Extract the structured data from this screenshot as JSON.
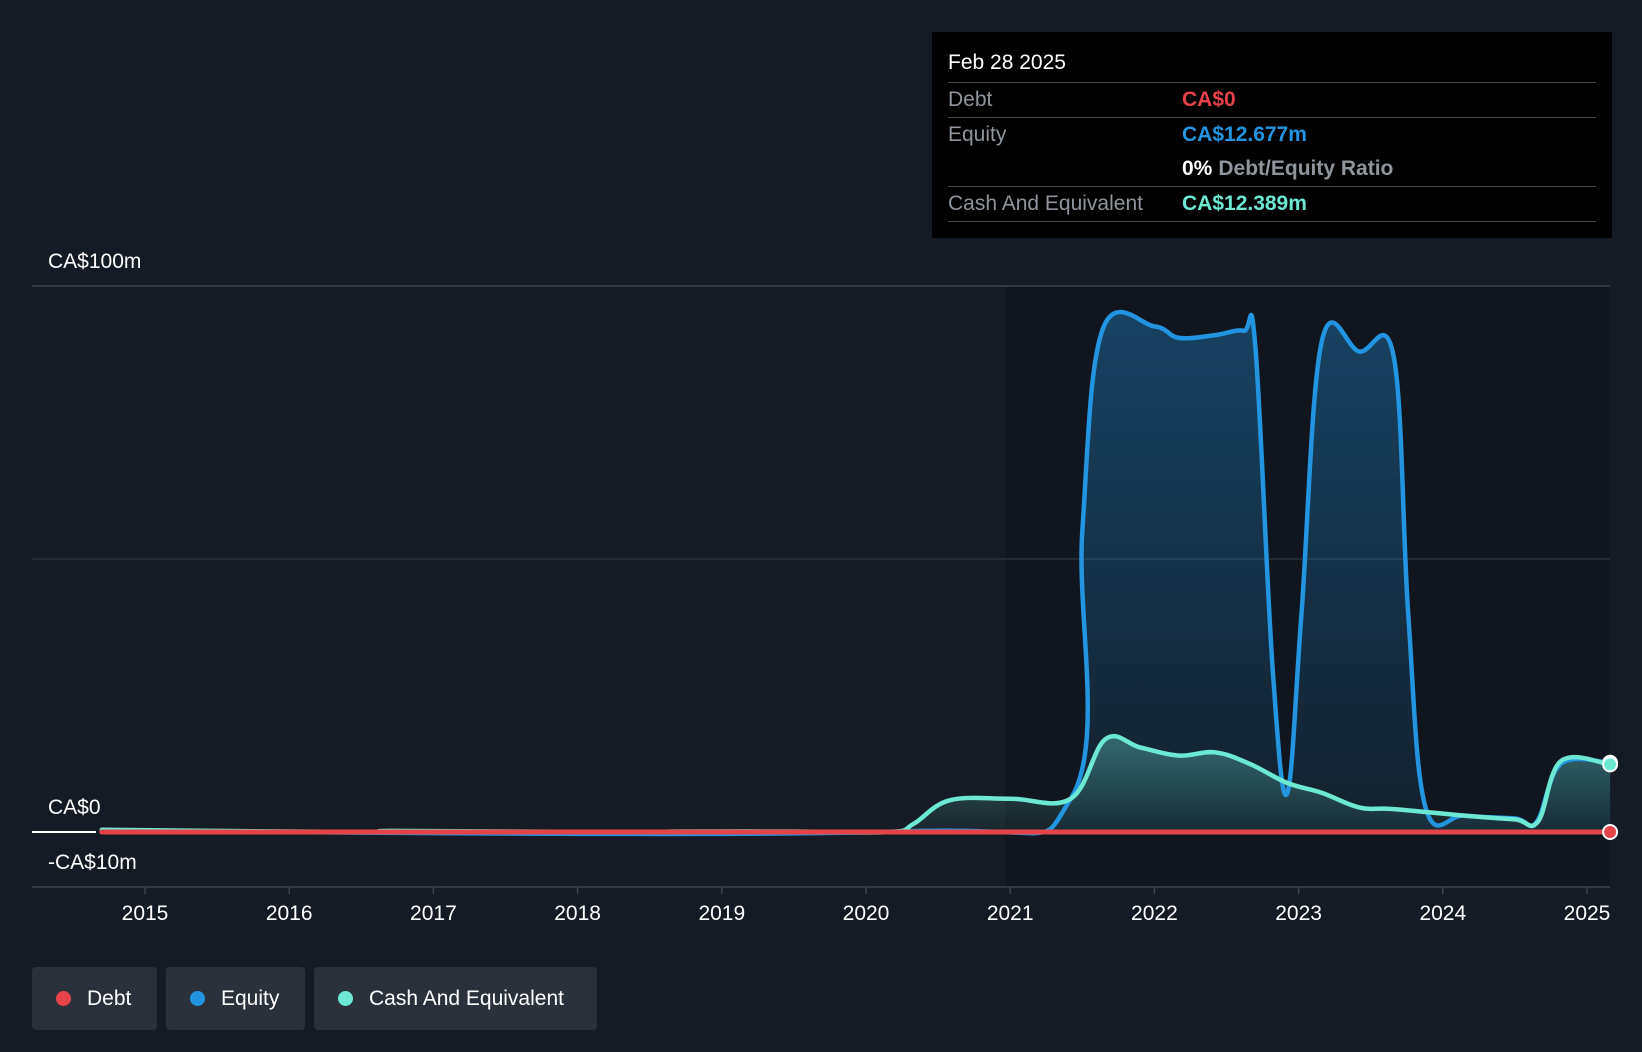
{
  "tooltip": {
    "date": "Feb 28 2025",
    "debt_label": "Debt",
    "debt_value": "CA$0",
    "equity_label": "Equity",
    "equity_value": "CA$12.677m",
    "ratio_value": "0%",
    "ratio_label": "Debt/Equity Ratio",
    "cash_label": "Cash And Equivalent",
    "cash_value": "CA$12.389m"
  },
  "y_axis": {
    "top_label": "CA$100m",
    "zero_label": "CA$0",
    "bottom_label": "-CA$10m"
  },
  "legend": {
    "debt": "Debt",
    "equity": "Equity",
    "cash": "Cash And Equivalent"
  },
  "colors": {
    "debt": "#e5434a",
    "equity": "#2394df",
    "cash": "#6ce8d3",
    "background": "#151b24",
    "tooltip_bg": "#000000"
  },
  "chart_data": {
    "type": "area",
    "title": "",
    "xlabel": "",
    "ylabel": "",
    "ylim": [
      -10,
      100
    ],
    "y_ticks": [
      100,
      50,
      0,
      -10
    ],
    "x_ticks": [
      "2015",
      "2016",
      "2017",
      "2018",
      "2019",
      "2020",
      "2021",
      "2022",
      "2023",
      "2024",
      "2025"
    ],
    "grid": true,
    "legend_position": "bottom-left",
    "series": [
      {
        "name": "Debt",
        "color": "#e5434a",
        "points": [
          [
            2014.7,
            0
          ],
          [
            2025.16,
            0
          ]
        ]
      },
      {
        "name": "Equity",
        "color": "#2394df",
        "points": [
          [
            2014.7,
            0.2
          ],
          [
            2020.2,
            0.1
          ],
          [
            2021.42,
            6.1
          ],
          [
            2021.5,
            55
          ],
          [
            2021.64,
            92
          ],
          [
            2022.0,
            92.6
          ],
          [
            2022.17,
            90.5
          ],
          [
            2022.42,
            91
          ],
          [
            2022.62,
            91.8
          ],
          [
            2022.7,
            89
          ],
          [
            2022.82,
            30
          ],
          [
            2022.92,
            7
          ],
          [
            2023.02,
            40
          ],
          [
            2023.16,
            89.8
          ],
          [
            2023.42,
            88
          ],
          [
            2023.66,
            87
          ],
          [
            2023.76,
            40
          ],
          [
            2023.88,
            4.5
          ],
          [
            2024.15,
            3
          ],
          [
            2024.5,
            2.5
          ],
          [
            2024.65,
            1.8
          ],
          [
            2024.82,
            12.5
          ],
          [
            2025.16,
            12.677
          ]
        ]
      },
      {
        "name": "Cash And Equivalent",
        "color": "#6ce8d3",
        "points": [
          [
            2014.7,
            0.4
          ],
          [
            2015.5,
            0.2
          ],
          [
            2016.5,
            0
          ],
          [
            2016.7,
            0.2
          ],
          [
            2017.5,
            0.1
          ],
          [
            2018.5,
            0
          ],
          [
            2018.7,
            0.1
          ],
          [
            2019.5,
            0.1
          ],
          [
            2020.17,
            0
          ],
          [
            2020.33,
            1.5
          ],
          [
            2020.58,
            5.8
          ],
          [
            2021,
            6.1
          ],
          [
            2021.42,
            6.1
          ],
          [
            2021.66,
            17
          ],
          [
            2021.9,
            15.5
          ],
          [
            2022.17,
            14
          ],
          [
            2022.42,
            14.6
          ],
          [
            2022.66,
            12.5
          ],
          [
            2022.92,
            9
          ],
          [
            2023.16,
            7.2
          ],
          [
            2023.42,
            4.5
          ],
          [
            2023.66,
            4.2
          ],
          [
            2024.15,
            3
          ],
          [
            2024.5,
            2.3
          ],
          [
            2024.66,
            1.9
          ],
          [
            2024.82,
            13
          ],
          [
            2025.16,
            12.389
          ]
        ]
      }
    ]
  }
}
